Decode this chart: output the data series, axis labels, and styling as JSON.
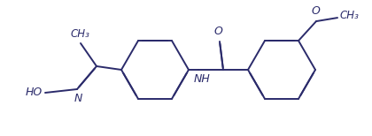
{
  "bg_color": "#ffffff",
  "line_color": "#2b2b6b",
  "line_width": 1.4,
  "dbo": 0.006,
  "figsize": [
    4.2,
    1.54
  ],
  "dpi": 100,
  "xlim": [
    0,
    420
  ],
  "ylim": [
    0,
    154
  ]
}
